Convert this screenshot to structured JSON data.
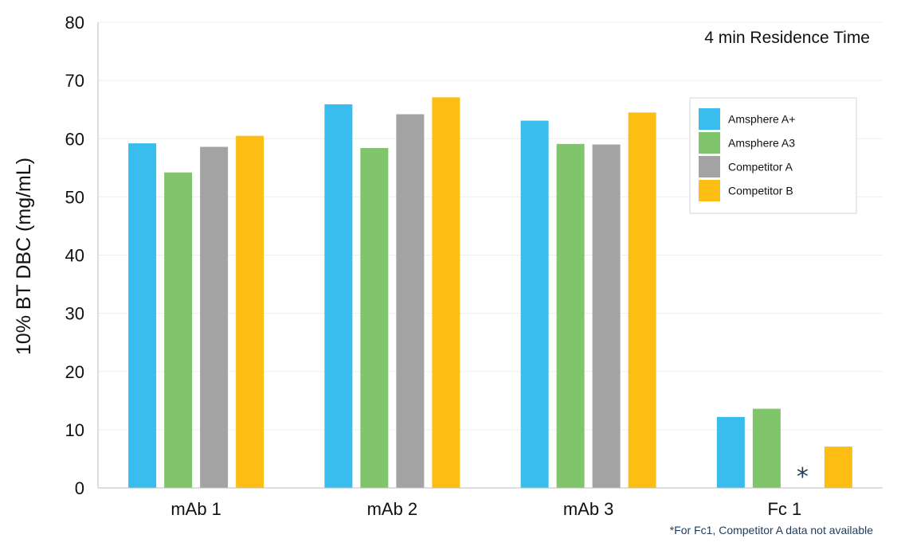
{
  "chart_data": {
    "type": "bar",
    "categories": [
      "mAb 1",
      "mAb 2",
      "mAb 3",
      "Fc 1"
    ],
    "series": [
      {
        "name": "Amsphere A+",
        "color": "#38bdee",
        "values": [
          59.2,
          65.9,
          63.1,
          12.2
        ]
      },
      {
        "name": "Amsphere A3",
        "color": "#80c56c",
        "values": [
          54.2,
          58.4,
          59.1,
          13.6
        ]
      },
      {
        "name": "Competitor A",
        "color": "#a3a3a3",
        "values": [
          58.6,
          64.2,
          59.0,
          null
        ]
      },
      {
        "name": "Competitor B",
        "color": "#fdbe13",
        "values": [
          60.5,
          67.1,
          64.5,
          7.1
        ]
      }
    ],
    "ylabel": "10% BT DBC (mg/mL)",
    "xlabel": "",
    "ylim": [
      0,
      80
    ],
    "yticks": [
      0,
      10,
      20,
      30,
      40,
      50,
      60,
      70,
      80
    ],
    "grid": true,
    "legend_position": "top-right",
    "annotation": "4 min Residence Time",
    "missing_marker": "*",
    "footnote": "*For Fc1, Competitor A data not available"
  }
}
